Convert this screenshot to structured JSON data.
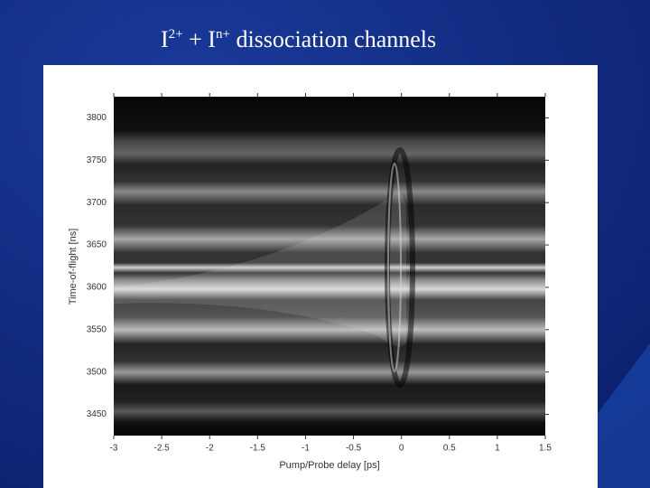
{
  "chart_data": {
    "type": "heatmap",
    "title": [
      "I",
      "2+",
      " + I",
      "n+",
      " dissociation channels"
    ],
    "x_label": "Pump/Probe delay [ps]",
    "y_label": "Time-of-flight [ns]",
    "xlim": [
      -3,
      1.5
    ],
    "xticks": [
      -3,
      -2.5,
      -2,
      -1.5,
      -1,
      -0.5,
      0,
      0.5,
      1,
      1.5
    ],
    "ylim": [
      3425,
      3825
    ],
    "yticks": [
      3450,
      3500,
      3550,
      3600,
      3650,
      3700,
      3750,
      3800
    ],
    "colormap": "gray"
  }
}
